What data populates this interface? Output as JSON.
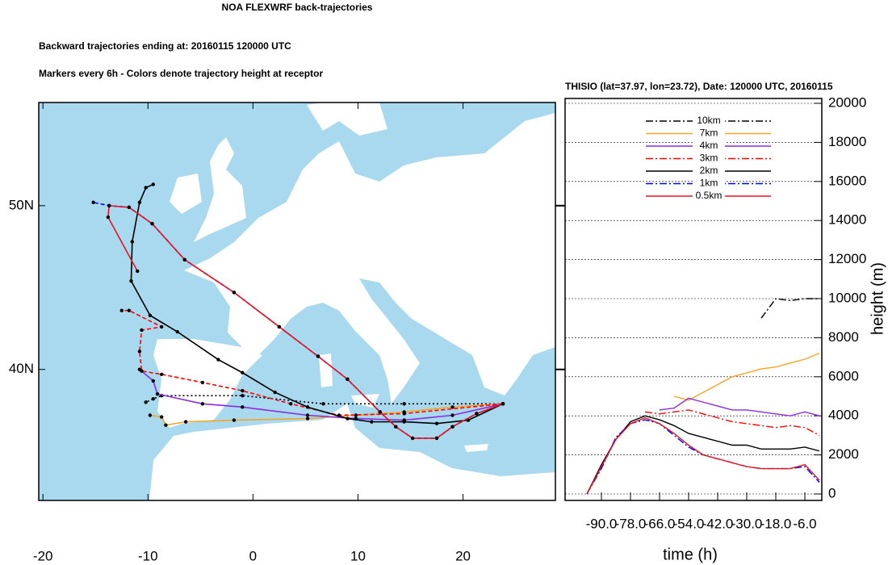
{
  "header": {
    "title": "NOA FLEXWRF back-trajectories",
    "subtitle": "Backward trajectories ending at: 20160115  120000 UTC",
    "note": "Markers every 6h - Colors denote trajectory height at receptor"
  },
  "chart_data": [
    {
      "type": "map",
      "xlim": [
        -20.4,
        28.8
      ],
      "ylim": [
        32,
        56.3
      ],
      "xticks": [
        -20,
        -10,
        0,
        10,
        20
      ],
      "yticks": [
        {
          "value": 40,
          "label": "40N"
        },
        {
          "value": 50,
          "label": "50N"
        }
      ],
      "markers": true,
      "series": [
        {
          "color": "#000000",
          "linestyle": "dotted",
          "x": [
            23.8,
            14.4,
            6.7,
            -1,
            -8.7,
            -9.5,
            -10.2
          ],
          "values": [
            37.9,
            37.9,
            37.9,
            38.4,
            38.4,
            38.2,
            38
          ]
        },
        {
          "color": "#f5a623",
          "linestyle": "solid",
          "x": [
            23.8,
            19,
            14.4,
            9.8,
            5.2,
            -1.8,
            -6.4,
            -8.3,
            -8.7,
            -9.8
          ],
          "values": [
            37.9,
            37.7,
            37.4,
            37.2,
            37,
            36.9,
            36.8,
            36.6,
            37.1,
            37.2
          ]
        },
        {
          "color": "#8a2be2",
          "linestyle": "solid",
          "x": [
            23.8,
            19,
            14.4,
            9.8,
            5.2,
            -1,
            -4.8,
            -9.1,
            -9.5,
            -10.8
          ],
          "values": [
            37.9,
            37.2,
            36.9,
            37,
            37.2,
            37.7,
            37.9,
            38.5,
            39.3,
            40
          ]
        },
        {
          "color": "#ff0000",
          "linestyle": "dashed",
          "x": [
            23.8,
            14.4,
            8.2,
            3.6,
            -1,
            -4.8,
            -8.7,
            -10.6,
            -10.8,
            -10.6,
            -8.7,
            -11.8,
            -12.5
          ],
          "values": [
            37.9,
            37.3,
            37.2,
            37.9,
            38.7,
            39.2,
            39.7,
            39.9,
            41.1,
            42.4,
            42.6,
            43.6,
            43.6
          ]
        },
        {
          "color": "#000000",
          "linestyle": "solid",
          "x": [
            23.8,
            20.5,
            17.5,
            14.4,
            11.3,
            9,
            5.2,
            2.1,
            -1,
            -3.3,
            -7.2,
            -9.8,
            -11.6,
            -11.5,
            -10.8,
            -10.2,
            -9.5
          ],
          "values": [
            37.9,
            36.9,
            36.7,
            36.8,
            36.8,
            37,
            37.7,
            38.6,
            39.8,
            40.6,
            42.3,
            43.3,
            45.4,
            47.8,
            50.2,
            51.1,
            51.3
          ]
        },
        {
          "color": "#0000ff",
          "linestyle": "dashed",
          "x": [
            23.8,
            21.3,
            19,
            17.5,
            15.2,
            13.6,
            12.1,
            9,
            6.2,
            2.5,
            -1.8,
            -6.5,
            -9.6,
            -11.8,
            -13.7,
            -15.2
          ],
          "values": [
            37.9,
            37.3,
            36.5,
            35.8,
            35.8,
            36.5,
            37.4,
            39.4,
            40.8,
            42.6,
            44.7,
            46.7,
            48.9,
            49.9,
            50,
            50.2
          ]
        },
        {
          "color": "#e8141e",
          "linestyle": "solid",
          "x": [
            23.8,
            21.3,
            19,
            17.5,
            15.2,
            13.6,
            12.1,
            9,
            6.2,
            2.5,
            -1.8,
            -6.5,
            -9.6,
            -11.8,
            -13.7,
            -13.8,
            -11
          ],
          "values": [
            37.9,
            37.3,
            36.5,
            35.8,
            35.8,
            36.5,
            37.4,
            39.4,
            40.8,
            42.6,
            44.7,
            46.7,
            48.9,
            49.9,
            50,
            49.3,
            46
          ]
        }
      ]
    },
    {
      "type": "line",
      "title": "THISIO (lat=37.97,  lon=23.72), Date: 120000 UTC, 20160115",
      "xlabel": "time (h)",
      "ylabel": "height (m)",
      "x": [
        -96,
        -90,
        -84,
        -78,
        -72,
        -66,
        -60,
        -54,
        -48,
        -42,
        -36,
        -30,
        -24,
        -18,
        -12,
        -6,
        0
      ],
      "xlim": [
        -105,
        1
      ],
      "xticks": [
        {
          "value": -90,
          "label": "-90.0"
        },
        {
          "value": -78,
          "label": "-78.0"
        },
        {
          "value": -66,
          "label": "-66.0"
        },
        {
          "value": -54,
          "label": "-54.0"
        },
        {
          "value": -42,
          "label": "-42.0"
        },
        {
          "value": -30,
          "label": "-30.0"
        },
        {
          "value": -18,
          "label": "-18.0"
        },
        {
          "value": -6,
          "label": "-6.0"
        }
      ],
      "ylim": [
        0,
        20000
      ],
      "yticks": [
        0,
        2000,
        4000,
        6000,
        8000,
        10000,
        12000,
        14000,
        16000,
        18000,
        20000
      ],
      "grid": true,
      "legend": "top",
      "series": [
        {
          "name": "10km",
          "color": "#000000",
          "linestyle": "dashdot",
          "values": [
            null,
            null,
            null,
            null,
            null,
            null,
            null,
            null,
            null,
            null,
            null,
            null,
            9000,
            10000,
            9900,
            10000,
            10000
          ]
        },
        {
          "name": "7km",
          "color": "#f5a623",
          "linestyle": "solid",
          "values": [
            null,
            null,
            null,
            null,
            null,
            null,
            5000,
            4800,
            5200,
            5600,
            6000,
            6200,
            6400,
            6500,
            6700,
            6900,
            7200
          ]
        },
        {
          "name": "4km",
          "color": "#8a2be2",
          "linestyle": "solid",
          "values": [
            null,
            null,
            null,
            null,
            null,
            4300,
            4400,
            4900,
            4700,
            4500,
            4300,
            4300,
            4200,
            4100,
            4000,
            4200,
            4000
          ]
        },
        {
          "name": "3km",
          "color": "#ff0000",
          "linestyle": "dashdot",
          "values": [
            null,
            null,
            null,
            null,
            4200,
            4100,
            4200,
            4300,
            4100,
            3900,
            3700,
            3600,
            3500,
            3400,
            3500,
            3400,
            3000
          ]
        },
        {
          "name": "2km",
          "color": "#000000",
          "linestyle": "solid",
          "values": [
            0,
            1500,
            2800,
            3700,
            4000,
            3800,
            3500,
            3100,
            2900,
            2700,
            2500,
            2500,
            2300,
            2300,
            2300,
            2400,
            2200
          ]
        },
        {
          "name": "1km",
          "color": "#0000ff",
          "linestyle": "dashdot",
          "values": [
            0,
            1300,
            2900,
            3600,
            3800,
            3600,
            3000,
            2400,
            2000,
            1800,
            1600,
            1400,
            1300,
            1300,
            1300,
            1400,
            600
          ]
        },
        {
          "name": "0.5km",
          "color": "#e8141e",
          "linestyle": "solid",
          "values": [
            0,
            1400,
            2800,
            3600,
            3900,
            3600,
            3100,
            2500,
            2000,
            1800,
            1600,
            1400,
            1300,
            1300,
            1300,
            1500,
            700
          ]
        }
      ]
    }
  ]
}
